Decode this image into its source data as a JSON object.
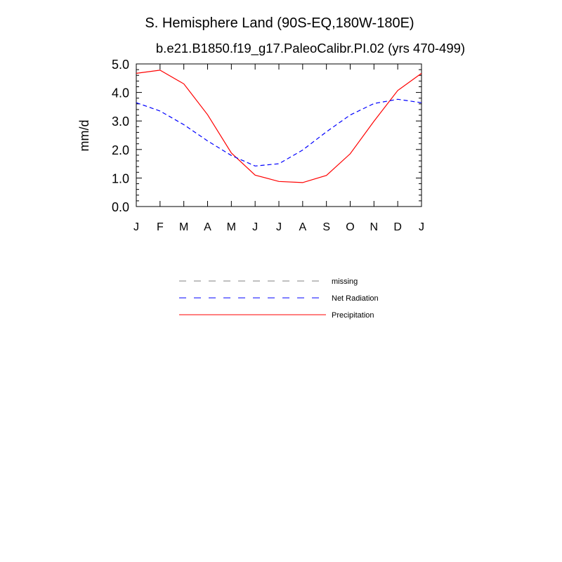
{
  "chart_data": {
    "type": "line",
    "title": "S. Hemisphere Land (90S-EQ,180W-180E)",
    "subtitle": "b.e21.B1850.f19_g17.PaleoCalibr.PI.02 (yrs 470-499)",
    "xlabel": "",
    "ylabel": "mm/d",
    "categories": [
      "J",
      "F",
      "M",
      "A",
      "M",
      "J",
      "J",
      "A",
      "S",
      "O",
      "N",
      "D",
      "J"
    ],
    "ylim": [
      0,
      5
    ],
    "yticks": [
      "0.0",
      "1.0",
      "2.0",
      "3.0",
      "4.0",
      "5.0"
    ],
    "series": [
      {
        "name": "Precipitation",
        "color": "#ff0000",
        "dash": "solid",
        "values": [
          4.67,
          4.78,
          4.3,
          3.22,
          1.88,
          1.1,
          0.88,
          0.84,
          1.09,
          1.85,
          2.99,
          4.07,
          4.67
        ]
      },
      {
        "name": "Net Radiation",
        "color": "#0000ff",
        "dash": "dashed",
        "values": [
          3.64,
          3.35,
          2.87,
          2.3,
          1.79,
          1.42,
          1.5,
          1.98,
          2.62,
          3.21,
          3.61,
          3.76,
          3.64
        ]
      }
    ],
    "legend": [
      {
        "label": "missing",
        "color": "#808080",
        "dash": "dashed"
      },
      {
        "label": "Net Radiation",
        "color": "#0000ff",
        "dash": "dashed"
      },
      {
        "label": "Precipitation",
        "color": "#ff0000",
        "dash": "solid"
      }
    ]
  }
}
